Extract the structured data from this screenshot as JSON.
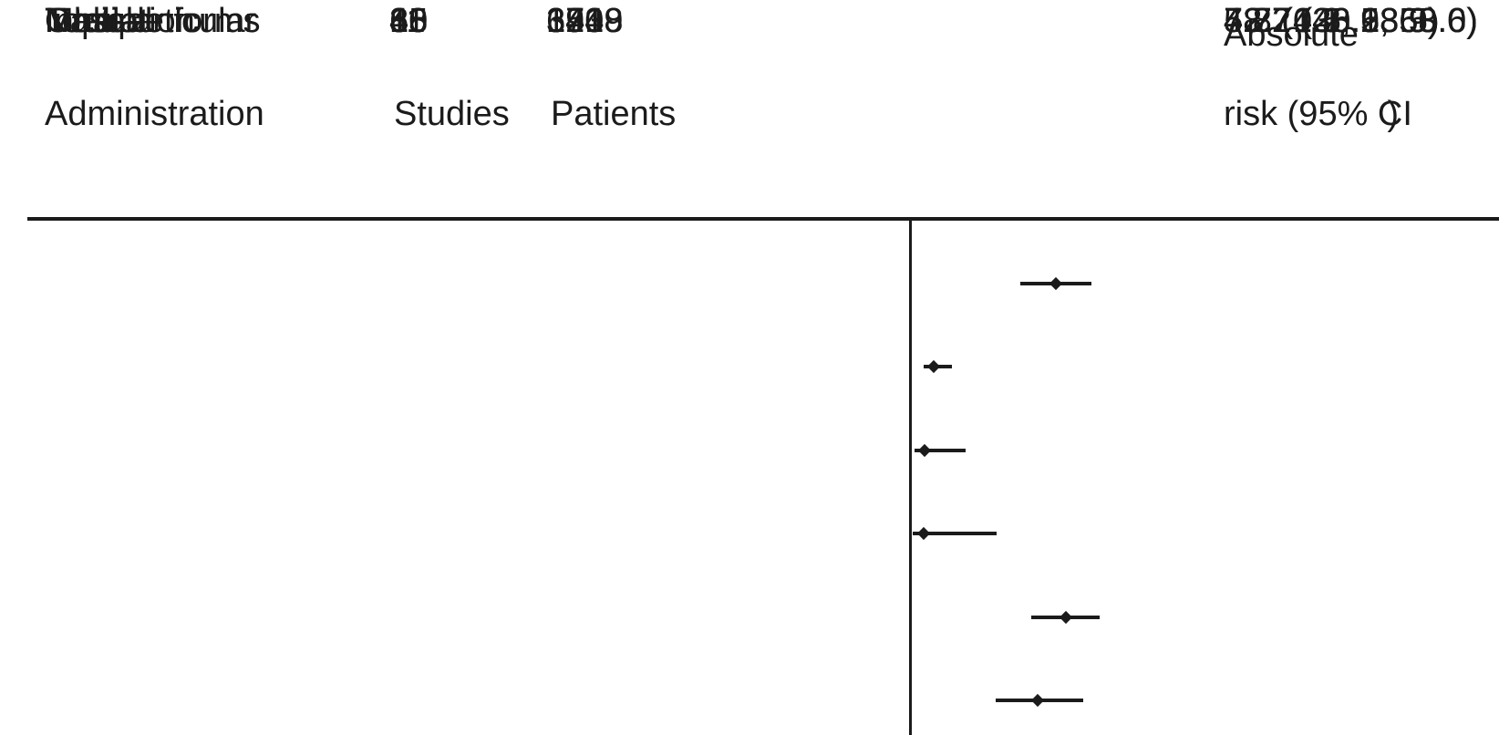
{
  "colors": {
    "background": "#ffffff",
    "text": "#1b1b1b",
    "line": "#1b1b1b"
  },
  "header": {
    "administration": "Administration",
    "studies": "Studies",
    "patients": "Patients",
    "risk_line1": "Absolute",
    "risk_line2_prefix": "risk (95% C",
    "risk_line2_overlap_paren": ")",
    "risk_line2_suffix": "I"
  },
  "rows": [
    {
      "administration": "Oral",
      "studies": "38",
      "patients": "1419",
      "risk": "48.7 (36.9, 60.6)"
    },
    {
      "administration": "Inhalation",
      "studies": "60",
      "patients": "1418",
      "risk": "7.8 (4.2, 13.9)"
    },
    {
      "administration": "Topical",
      "studies": "15",
      "patients": "320",
      "risk": "4.7 (1.1, 18.5)"
    },
    {
      "administration": "Nasal",
      "studies": "8",
      "patients": "173",
      "risk": "4.2 (0.5, 28.9)"
    },
    {
      "administration": "Intra–articular",
      "studies": "4",
      "patients": "69",
      "risk": "52.2 (40.5, 63.6)"
    },
    {
      "administration": "Multiple forms",
      "studies": "11",
      "patients": "354",
      "risk": "42.7 (28.6, 58.0)"
    }
  ],
  "chart_data": {
    "type": "forest",
    "title": "",
    "xlabel": "",
    "ylabel": "",
    "categories": [
      "Oral",
      "Inhalation",
      "Topical",
      "Nasal",
      "Intra–articular",
      "Multiple forms"
    ],
    "studies": [
      38,
      60,
      15,
      8,
      4,
      11
    ],
    "patients": [
      1419,
      1418,
      320,
      173,
      69,
      354
    ],
    "series": [
      {
        "name": "Absolute risk (95% CI)",
        "estimates": [
          48.7,
          7.8,
          4.7,
          4.2,
          52.2,
          42.7
        ],
        "ci_lower": [
          36.9,
          4.2,
          1.1,
          0.5,
          40.5,
          28.6
        ],
        "ci_upper": [
          60.6,
          13.9,
          18.5,
          28.9,
          63.6,
          58.0
        ]
      }
    ],
    "x_axis": {
      "origin_value": 0,
      "reference_line_at": 0,
      "tick_labels_visible": false
    },
    "legend_position": "none",
    "grid": false,
    "marker": "diamond"
  }
}
